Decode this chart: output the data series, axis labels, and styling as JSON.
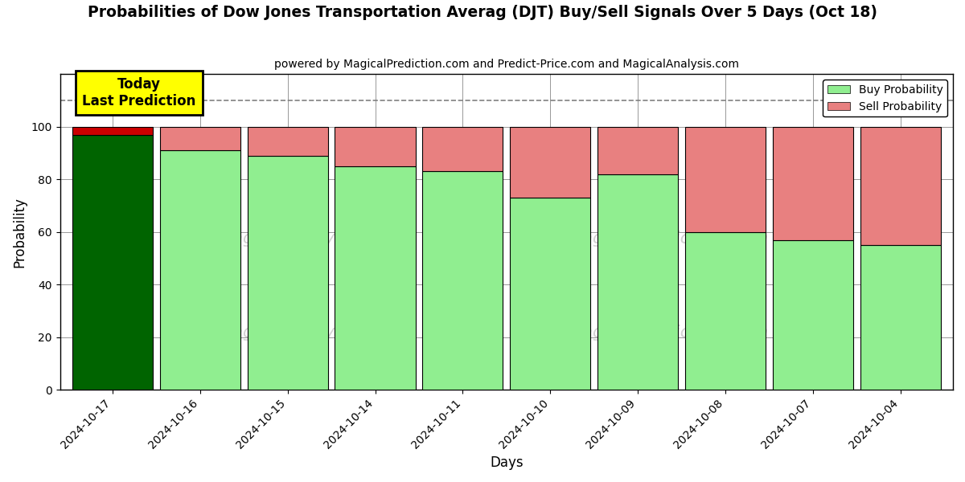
{
  "title": "Probabilities of Dow Jones Transportation Averag (DJT) Buy/Sell Signals Over 5 Days (Oct 18)",
  "subtitle": "powered by MagicalPrediction.com and Predict-Price.com and MagicalAnalysis.com",
  "xlabel": "Days",
  "ylabel": "Probability",
  "dates": [
    "2024-10-17",
    "2024-10-16",
    "2024-10-15",
    "2024-10-14",
    "2024-10-11",
    "2024-10-10",
    "2024-10-09",
    "2024-10-08",
    "2024-10-07",
    "2024-10-04"
  ],
  "buy_probs": [
    97,
    91,
    89,
    85,
    83,
    73,
    82,
    60,
    57,
    55
  ],
  "sell_probs": [
    3,
    9,
    11,
    15,
    17,
    27,
    18,
    40,
    43,
    45
  ],
  "today_bar_color": "#006400",
  "today_sell_color": "#cc0000",
  "buy_color": "#90EE90",
  "sell_color": "#E88080",
  "annotation_text": "Today\nLast Prediction",
  "annotation_bg": "#FFFF00",
  "legend_buy": "Buy Probability",
  "legend_sell": "Sell Probability",
  "ylim": [
    0,
    120
  ],
  "dashed_line_y": 110,
  "background_color": "#ffffff",
  "watermark_color": "#cccccc",
  "grid_color": "#888888",
  "bar_width": 0.92
}
